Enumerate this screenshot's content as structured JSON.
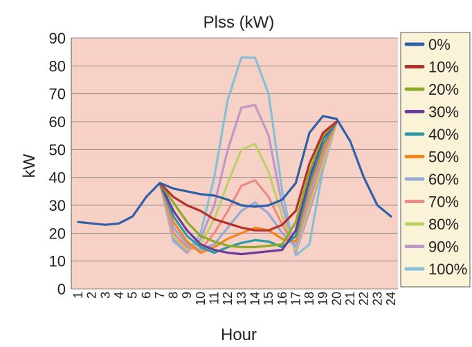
{
  "chart_data": {
    "type": "line",
    "title": "Plss (kW)",
    "xlabel": "Hour",
    "ylabel": "kW",
    "ylim": [
      0,
      90
    ],
    "yticks": [
      "0",
      "10",
      "20",
      "30",
      "40",
      "50",
      "60",
      "70",
      "80",
      "90"
    ],
    "categories": [
      "1",
      "2",
      "3",
      "4",
      "5",
      "6",
      "7",
      "8",
      "9",
      "10",
      "11",
      "12",
      "13",
      "14",
      "15",
      "16",
      "17",
      "18",
      "19",
      "20",
      "21",
      "22",
      "23",
      "24"
    ],
    "grid": true,
    "legend_position": "right",
    "plot_background": "#f7d0c6",
    "series": [
      {
        "name": "0%",
        "color": "#2e5fa8",
        "values": [
          24,
          23.5,
          23,
          23.5,
          26,
          33,
          38,
          36,
          35,
          34,
          33.5,
          32,
          30,
          29.5,
          30,
          32,
          38,
          56,
          62,
          61,
          53,
          40,
          30,
          26
        ]
      },
      {
        "name": "10%",
        "color": "#b5312d",
        "values": [
          null,
          null,
          null,
          null,
          null,
          null,
          38,
          33,
          30,
          28,
          25,
          23.5,
          22,
          21,
          21,
          23,
          28,
          45,
          56,
          60,
          null,
          null,
          null,
          null
        ]
      },
      {
        "name": "20%",
        "color": "#8aaa2a",
        "values": [
          null,
          null,
          null,
          null,
          null,
          null,
          38,
          31,
          24,
          19,
          17,
          15.5,
          15,
          15,
          15.5,
          16,
          24,
          42,
          55,
          60,
          null,
          null,
          null,
          null
        ]
      },
      {
        "name": "30%",
        "color": "#6a3d9a",
        "values": [
          null,
          null,
          null,
          null,
          null,
          null,
          38,
          28,
          21,
          16,
          14,
          13,
          12.5,
          13,
          13.5,
          14,
          21,
          40,
          54,
          60,
          null,
          null,
          null,
          null
        ]
      },
      {
        "name": "40%",
        "color": "#2a9aa8",
        "values": [
          null,
          null,
          null,
          null,
          null,
          null,
          38,
          26,
          19,
          15,
          13,
          15,
          16.5,
          17.5,
          17,
          15,
          19,
          38,
          52,
          60,
          null,
          null,
          null,
          null
        ]
      },
      {
        "name": "50%",
        "color": "#f2851e",
        "values": [
          null,
          null,
          null,
          null,
          null,
          null,
          38,
          24,
          17,
          13,
          15,
          18,
          20,
          22,
          21,
          18,
          17,
          36,
          50,
          60,
          null,
          null,
          null,
          null
        ]
      },
      {
        "name": "60%",
        "color": "#95a9d6",
        "values": [
          null,
          null,
          null,
          null,
          null,
          null,
          38,
          22,
          16,
          14,
          16,
          22,
          28,
          31,
          27,
          20,
          15,
          34,
          49,
          60,
          null,
          null,
          null,
          null
        ]
      },
      {
        "name": "70%",
        "color": "#ec8a86",
        "values": [
          null,
          null,
          null,
          null,
          null,
          null,
          38,
          20,
          15,
          14,
          20,
          28,
          37,
          39,
          33,
          23,
          15,
          32,
          47,
          60,
          null,
          null,
          null,
          null
        ]
      },
      {
        "name": "80%",
        "color": "#bcd06a",
        "values": [
          null,
          null,
          null,
          null,
          null,
          null,
          38,
          19,
          14,
          16,
          25,
          38,
          50,
          52,
          42,
          26,
          14,
          30,
          45,
          60,
          null,
          null,
          null,
          null
        ]
      },
      {
        "name": "90%",
        "color": "#c098c8",
        "values": [
          null,
          null,
          null,
          null,
          null,
          null,
          38,
          18,
          13,
          18,
          30,
          50,
          65,
          66,
          55,
          30,
          13,
          28,
          44,
          60,
          null,
          null,
          null,
          null
        ]
      },
      {
        "name": "100%",
        "color": "#86c0d6",
        "values": [
          null,
          null,
          null,
          null,
          null,
          null,
          38,
          17,
          13,
          20,
          40,
          68,
          83,
          83,
          70,
          35,
          12,
          16,
          43,
          60,
          null,
          null,
          null,
          null
        ]
      }
    ]
  }
}
